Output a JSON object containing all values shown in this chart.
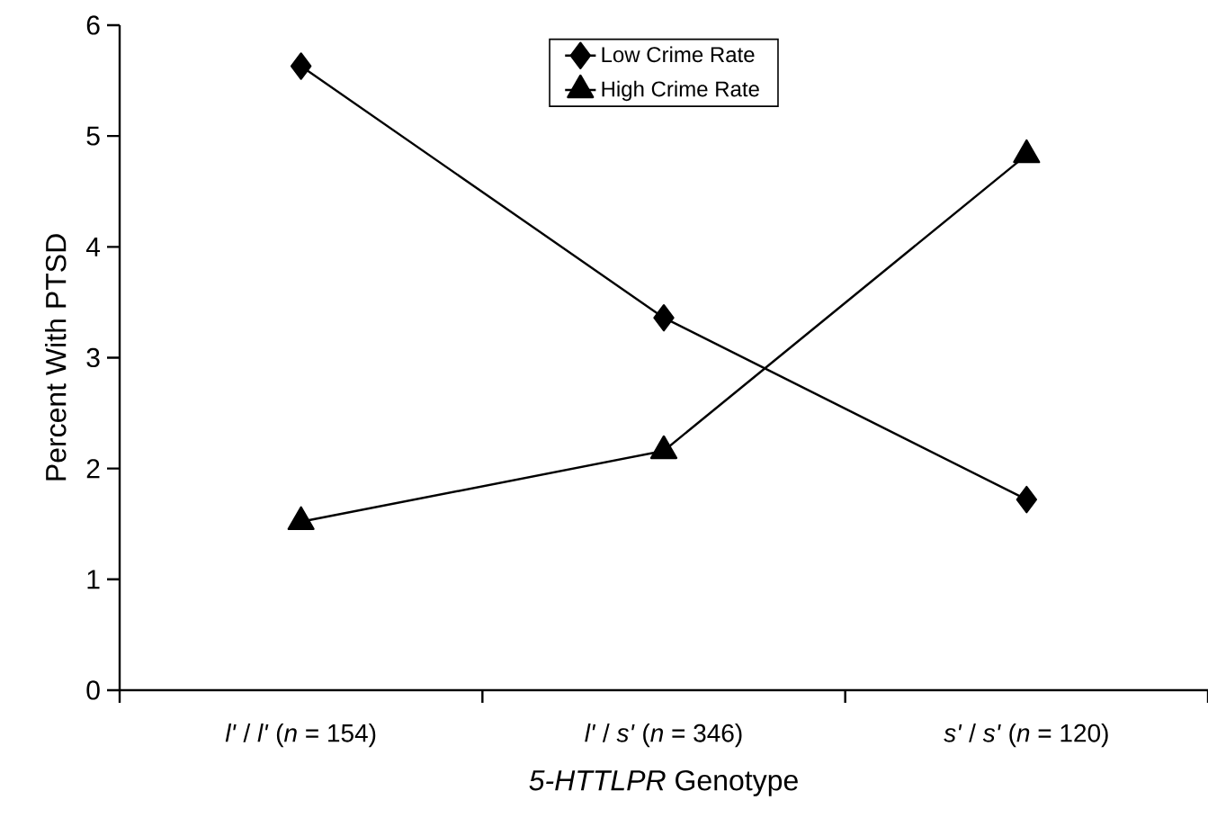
{
  "chart_data": {
    "type": "line",
    "xlabel": "*5-HTTLPR* Genotype",
    "ylabel": "Percent  With PTSD",
    "categories": [
      "*l'* / *l'* (*n* = 154)",
      "*l'* / *s'* (*n* = 346)",
      "*s'* / *s'* (*n* = 120)"
    ],
    "series": [
      {
        "name": "Low Crime Rate",
        "color": "#000000",
        "marker": "diamond",
        "values": [
          5.63,
          3.36,
          1.72
        ]
      },
      {
        "name": "High Crime Rate",
        "color": "#000000",
        "marker": "triangle",
        "values": [
          1.52,
          2.16,
          4.83
        ]
      }
    ],
    "ylim": [
      0,
      6
    ],
    "yticks": [
      0,
      1,
      2,
      3,
      4,
      5,
      6
    ],
    "legend": "top",
    "grid": false,
    "line_style": "solid"
  }
}
